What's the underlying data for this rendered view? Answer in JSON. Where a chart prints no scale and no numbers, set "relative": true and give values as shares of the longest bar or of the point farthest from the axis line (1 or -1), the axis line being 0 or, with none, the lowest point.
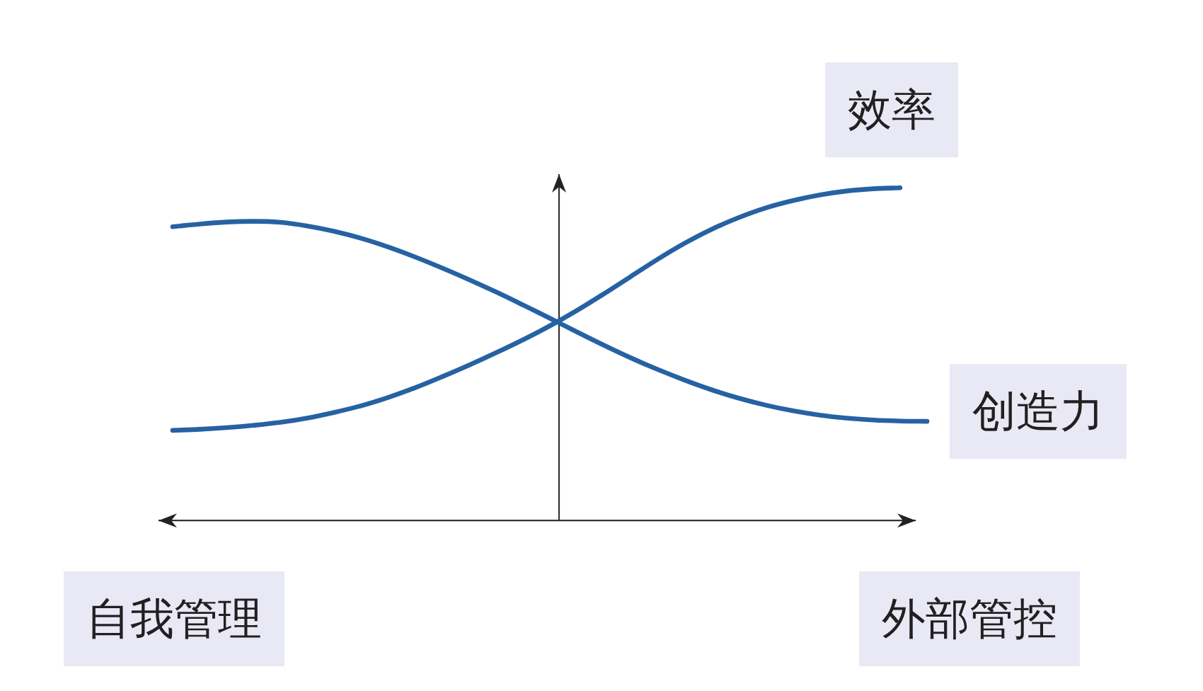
{
  "chart_data": {
    "type": "line",
    "relative": true,
    "categories": [
      null,
      null,
      null,
      null,
      null,
      null,
      null,
      null,
      null,
      null,
      null,
      null,
      null,
      null,
      null,
      null,
      null,
      null,
      null,
      null,
      null,
      null,
      null,
      null,
      null,
      null,
      null,
      null,
      null
    ],
    "series": [
      {
        "name": "效率",
        "color": "#2662a3",
        "values": [
          0.271,
          0.274,
          0.279,
          0.286,
          0.295,
          0.308,
          0.325,
          0.345,
          0.37,
          0.399,
          0.432,
          0.467,
          0.504,
          0.543,
          0.585,
          0.631,
          0.681,
          0.733,
          0.785,
          0.833,
          0.875,
          0.91,
          0.939,
          0.961,
          0.978,
          0.99,
          0.997,
          1.0,
          null
        ]
      },
      {
        "name": "创造力",
        "color": "#2662a3",
        "values": [
          0.883,
          0.891,
          0.897,
          0.899,
          0.896,
          0.885,
          0.869,
          0.848,
          0.822,
          0.792,
          0.759,
          0.724,
          0.687,
          0.648,
          0.608,
          0.567,
          0.527,
          0.489,
          0.454,
          0.422,
          0.393,
          0.368,
          0.347,
          0.33,
          0.317,
          0.308,
          0.302,
          0.299,
          0.298
        ]
      }
    ],
    "annotations": [
      "自我管理",
      "外部管控"
    ]
  }
}
